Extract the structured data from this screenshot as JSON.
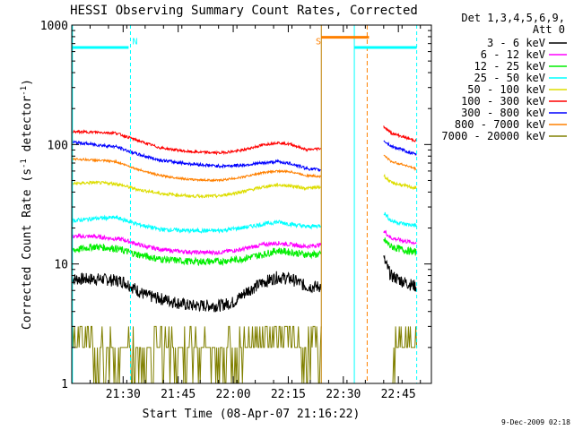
{
  "chart_data": {
    "type": "line",
    "title": "HESSI Observing Summary Count Rates, Corrected",
    "xlabel": "Start Time (08-Apr-07 21:16:22)",
    "ylabel": "Corrected Count Rate (s",
    "ylabel_sup1": "-1",
    "ylabel_mid": " detector",
    "ylabel_sup2": "-1",
    "ylabel_end": ")",
    "x_unit": "minutes since 21:16:22",
    "xlim": [
      0,
      98
    ],
    "ylim": [
      1,
      1000
    ],
    "yscale": "log",
    "x_ticks": [
      {
        "x": 14,
        "label": "21:30"
      },
      {
        "x": 29,
        "label": "21:45"
      },
      {
        "x": 44,
        "label": "22:00"
      },
      {
        "x": 59,
        "label": "22:15"
      },
      {
        "x": 74,
        "label": "22:30"
      },
      {
        "x": 89,
        "label": "22:45"
      }
    ],
    "y_ticks": [
      {
        "y": 1,
        "label": "1"
      },
      {
        "y": 10,
        "label": "10"
      },
      {
        "y": 100,
        "label": "100"
      },
      {
        "y": 1000,
        "label": "1000"
      }
    ],
    "legend": {
      "placement": "right",
      "header1": "Det 1,3,4,5,6,9,",
      "header2": "Att 0"
    },
    "footer_date": "9-Dec-2009 02:18",
    "gap": [
      68,
      85
    ],
    "series": [
      {
        "name": "3 - 6 keV",
        "color": "#000000",
        "noise": 0.12,
        "points": [
          [
            0,
            7.5
          ],
          [
            8,
            7.5
          ],
          [
            14,
            7.2
          ],
          [
            20,
            5.5
          ],
          [
            26,
            5
          ],
          [
            32,
            4.5
          ],
          [
            40,
            4.5
          ],
          [
            44,
            4.8
          ],
          [
            48,
            6
          ],
          [
            52,
            7
          ],
          [
            56,
            7.8
          ],
          [
            60,
            7.5
          ],
          [
            64,
            6.5
          ],
          [
            68,
            6.5
          ],
          [
            85,
            11
          ],
          [
            87,
            8
          ],
          [
            91,
            7
          ],
          [
            94,
            6.5
          ]
        ]
      },
      {
        "name": "6 - 12 keV",
        "color": "#ff00ff",
        "noise": 0.04,
        "points": [
          [
            0,
            17
          ],
          [
            6,
            17
          ],
          [
            14,
            16
          ],
          [
            20,
            14
          ],
          [
            26,
            13
          ],
          [
            34,
            12.5
          ],
          [
            40,
            12.5
          ],
          [
            46,
            13.2
          ],
          [
            52,
            14.5
          ],
          [
            56,
            15
          ],
          [
            60,
            14.5
          ],
          [
            64,
            14
          ],
          [
            68,
            14.5
          ],
          [
            85,
            19
          ],
          [
            87,
            16.5
          ],
          [
            91,
            15.5
          ],
          [
            94,
            15
          ]
        ]
      },
      {
        "name": "12 - 25 keV",
        "color": "#00ee00",
        "noise": 0.07,
        "points": [
          [
            0,
            13
          ],
          [
            6,
            14
          ],
          [
            12,
            13.5
          ],
          [
            18,
            12
          ],
          [
            24,
            11
          ],
          [
            32,
            10.5
          ],
          [
            40,
            10.5
          ],
          [
            46,
            11
          ],
          [
            52,
            12
          ],
          [
            56,
            13
          ],
          [
            60,
            12.5
          ],
          [
            64,
            12
          ],
          [
            68,
            12
          ],
          [
            85,
            16
          ],
          [
            87,
            14
          ],
          [
            91,
            13
          ],
          [
            94,
            12.5
          ]
        ]
      },
      {
        "name": "25 - 50 keV",
        "color": "#00ffff",
        "noise": 0.04,
        "points": [
          [
            0,
            23
          ],
          [
            6,
            24
          ],
          [
            12,
            24.5
          ],
          [
            18,
            21.5
          ],
          [
            24,
            19.5
          ],
          [
            32,
            19
          ],
          [
            40,
            19
          ],
          [
            46,
            20
          ],
          [
            52,
            21.5
          ],
          [
            56,
            22.5
          ],
          [
            60,
            21.5
          ],
          [
            64,
            20.5
          ],
          [
            68,
            21
          ],
          [
            85,
            27
          ],
          [
            87,
            23
          ],
          [
            91,
            21.5
          ],
          [
            94,
            21
          ]
        ]
      },
      {
        "name": "50 - 100 keV",
        "color": "#dddd00",
        "noise": 0.03,
        "points": [
          [
            0,
            47
          ],
          [
            6,
            48
          ],
          [
            12,
            47
          ],
          [
            18,
            42
          ],
          [
            24,
            39
          ],
          [
            32,
            37
          ],
          [
            40,
            37
          ],
          [
            46,
            40
          ],
          [
            52,
            44
          ],
          [
            56,
            46
          ],
          [
            60,
            45
          ],
          [
            64,
            43
          ],
          [
            68,
            44
          ],
          [
            85,
            55
          ],
          [
            87,
            48
          ],
          [
            91,
            45
          ],
          [
            94,
            43
          ]
        ]
      },
      {
        "name": "100 - 300 keV",
        "color": "#ff0000",
        "noise": 0.025,
        "points": [
          [
            0,
            128
          ],
          [
            6,
            127
          ],
          [
            12,
            125
          ],
          [
            18,
            108
          ],
          [
            24,
            94
          ],
          [
            32,
            87
          ],
          [
            40,
            85
          ],
          [
            46,
            89
          ],
          [
            52,
            99
          ],
          [
            56,
            104
          ],
          [
            60,
            100
          ],
          [
            64,
            90
          ],
          [
            68,
            93
          ],
          [
            85,
            142
          ],
          [
            87,
            125
          ],
          [
            91,
            114
          ],
          [
            94,
            107
          ]
        ]
      },
      {
        "name": "300 - 800 keV",
        "color": "#0000ff",
        "noise": 0.03,
        "points": [
          [
            0,
            105
          ],
          [
            6,
            100
          ],
          [
            12,
            96
          ],
          [
            18,
            83
          ],
          [
            24,
            74
          ],
          [
            32,
            69
          ],
          [
            40,
            66
          ],
          [
            46,
            67
          ],
          [
            52,
            70
          ],
          [
            56,
            72
          ],
          [
            60,
            69
          ],
          [
            64,
            63
          ],
          [
            68,
            61
          ],
          [
            85,
            108
          ],
          [
            87,
            97
          ],
          [
            91,
            88
          ],
          [
            94,
            82
          ]
        ]
      },
      {
        "name": "800 - 7000 keV",
        "color": "#ff8000",
        "noise": 0.02,
        "points": [
          [
            0,
            76
          ],
          [
            6,
            74
          ],
          [
            12,
            72
          ],
          [
            18,
            62
          ],
          [
            24,
            55
          ],
          [
            32,
            51
          ],
          [
            40,
            50
          ],
          [
            46,
            53
          ],
          [
            52,
            58
          ],
          [
            56,
            60
          ],
          [
            60,
            59
          ],
          [
            64,
            55
          ],
          [
            68,
            54
          ],
          [
            85,
            82
          ],
          [
            87,
            72
          ],
          [
            91,
            67
          ],
          [
            94,
            62
          ]
        ]
      },
      {
        "name": "7000 - 20000 keV",
        "color": "#808000",
        "noise": 0,
        "points": [
          [
            0,
            2
          ],
          [
            94,
            2
          ]
        ]
      }
    ],
    "annotations": [
      {
        "x": 16,
        "text": "N",
        "color": "#00ffff"
      },
      {
        "x": 66,
        "text": "S",
        "color": "#ff8000"
      }
    ]
  }
}
